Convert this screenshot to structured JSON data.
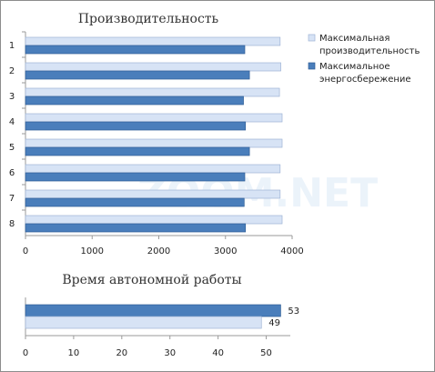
{
  "watermark": "ZOOM.NET",
  "colors": {
    "max_performance": "#d7e3f5",
    "max_performance_edge": "#9fb4d6",
    "energy_saving": "#4a7ebb",
    "energy_saving_edge": "#2f5d95"
  },
  "chart_data": [
    {
      "type": "bar",
      "orientation": "horizontal",
      "title": "Производительность",
      "categories": [
        "1",
        "2",
        "3",
        "4",
        "5",
        "6",
        "7",
        "8"
      ],
      "series": [
        {
          "name": "Максимальная производительность",
          "color": "#d7e3f5",
          "values": [
            3820,
            3830,
            3810,
            3850,
            3850,
            3820,
            3820,
            3850
          ]
        },
        {
          "name": "Максимальное энергосбережение",
          "color": "#4a7ebb",
          "values": [
            3290,
            3360,
            3270,
            3300,
            3360,
            3290,
            3280,
            3300
          ]
        }
      ],
      "xlim": [
        0,
        4000
      ],
      "xticks": [
        "0",
        "1000",
        "2000",
        "3000",
        "4000"
      ],
      "grid": false,
      "legend": {
        "position": "right",
        "entries": [
          {
            "lines": [
              "Максимальная",
              "производительность"
            ],
            "color": "#d7e3f5"
          },
          {
            "lines": [
              "Максимальное",
              "энергосбережение"
            ],
            "color": "#4a7ebb"
          }
        ]
      }
    },
    {
      "type": "bar",
      "orientation": "horizontal",
      "title": "Время автономной работы",
      "categories": [
        ""
      ],
      "series": [
        {
          "color": "#4a7ebb",
          "values": [
            53
          ],
          "label": "53"
        },
        {
          "color": "#d7e3f5",
          "values": [
            49
          ],
          "label": "49"
        }
      ],
      "xlim": [
        0,
        55
      ],
      "xticks": [
        "0",
        "10",
        "20",
        "30",
        "40",
        "50"
      ],
      "grid": false
    }
  ]
}
